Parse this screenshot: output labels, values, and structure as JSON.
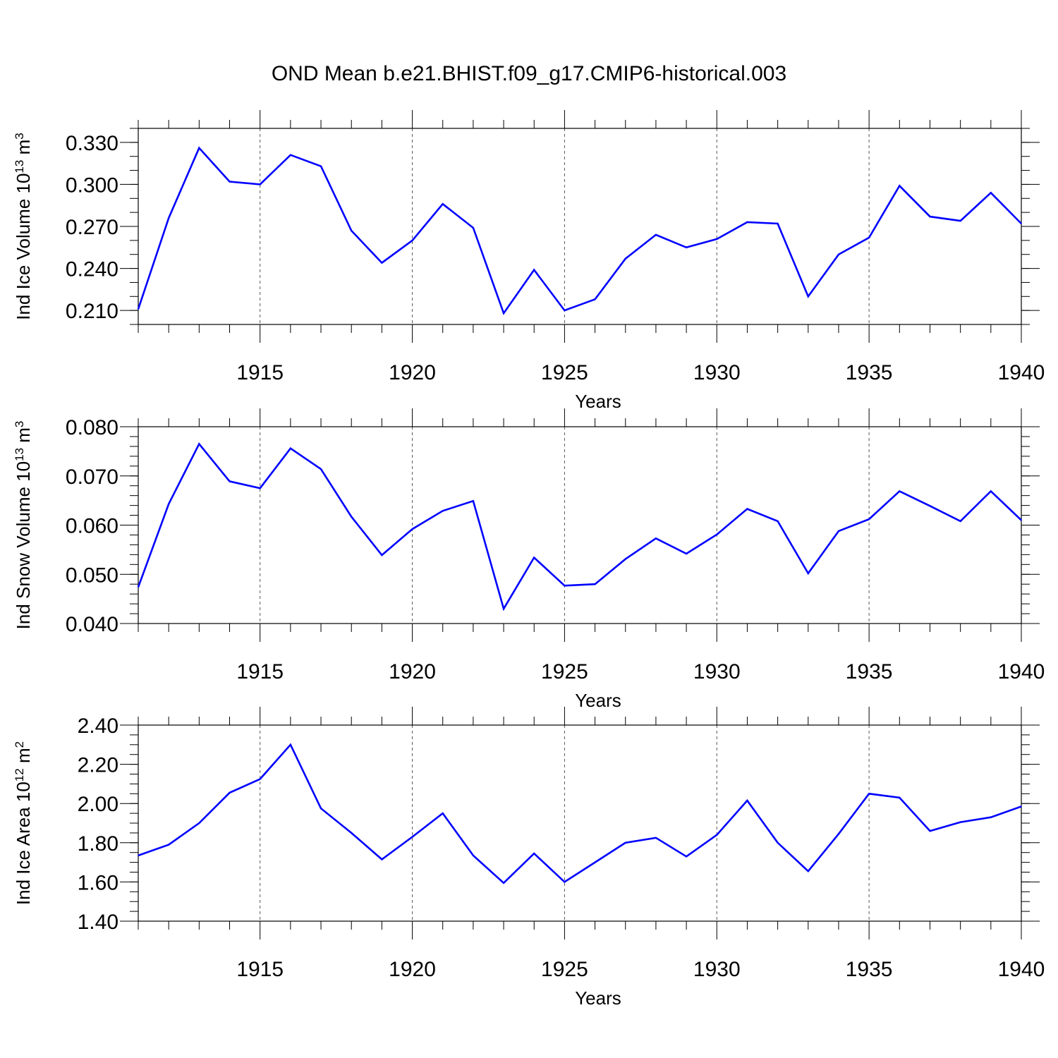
{
  "title": "OND Mean b.e21.BHIST.f09_g17.CMIP6-historical.003",
  "colors": {
    "line": "#0000ff",
    "axis": "#000000",
    "grid": "#555555"
  },
  "chart_data": [
    {
      "type": "line",
      "ylabel": "Ind Ice Volume 10",
      "ylabel_exp": "13",
      "ylabel_unit": " m",
      "ylabel_unit_exp": "3",
      "xlabel": "Years",
      "xlim": [
        1911,
        1940
      ],
      "ylim": [
        0.2,
        0.34
      ],
      "xticks": [
        1915,
        1920,
        1925,
        1930,
        1935,
        1940
      ],
      "yticks": [
        0.21,
        0.24,
        0.27,
        0.3,
        0.33
      ],
      "yticklabels": [
        "0.210",
        "0.240",
        "0.270",
        "0.300",
        "0.330"
      ],
      "yminor": 0.01,
      "grid": "vertical dashed at major x ticks",
      "x": [
        1911,
        1912,
        1913,
        1914,
        1915,
        1916,
        1917,
        1918,
        1919,
        1920,
        1921,
        1922,
        1923,
        1924,
        1925,
        1926,
        1927,
        1928,
        1929,
        1930,
        1931,
        1932,
        1933,
        1934,
        1935,
        1936,
        1937,
        1938,
        1939,
        1940
      ],
      "series": [
        {
          "values": [
            0.211,
            0.276,
            0.326,
            0.302,
            0.3,
            0.321,
            0.313,
            0.267,
            0.244,
            0.26,
            0.286,
            0.269,
            0.208,
            0.239,
            0.21,
            0.218,
            0.247,
            0.264,
            0.255,
            0.261,
            0.273,
            0.272,
            0.22,
            0.25,
            0.262,
            0.299,
            0.277,
            0.274,
            0.294,
            0.272
          ]
        }
      ]
    },
    {
      "type": "line",
      "ylabel": "Ind Snow Volume 10",
      "ylabel_exp": "13",
      "ylabel_unit": " m",
      "ylabel_unit_exp": "3",
      "xlabel": "Years",
      "xlim": [
        1911,
        1940
      ],
      "ylim": [
        0.04,
        0.08
      ],
      "xticks": [
        1915,
        1920,
        1925,
        1930,
        1935,
        1940
      ],
      "yticks": [
        0.04,
        0.05,
        0.06,
        0.07,
        0.08
      ],
      "yticklabels": [
        "0.040",
        "0.050",
        "0.060",
        "0.070",
        "0.080"
      ],
      "yminor": 0.002,
      "grid": "vertical dashed at major x ticks",
      "x": [
        1911,
        1912,
        1913,
        1914,
        1915,
        1916,
        1917,
        1918,
        1919,
        1920,
        1921,
        1922,
        1923,
        1924,
        1925,
        1926,
        1927,
        1928,
        1929,
        1930,
        1931,
        1932,
        1933,
        1934,
        1935,
        1936,
        1937,
        1938,
        1939,
        1940
      ],
      "series": [
        {
          "values": [
            0.0474,
            0.0643,
            0.0765,
            0.0689,
            0.0675,
            0.0756,
            0.0714,
            0.0617,
            0.0539,
            0.0592,
            0.0629,
            0.0649,
            0.043,
            0.0534,
            0.0477,
            0.048,
            0.0531,
            0.0573,
            0.0542,
            0.0581,
            0.0633,
            0.0608,
            0.0502,
            0.0588,
            0.0612,
            0.0669,
            0.0639,
            0.0608,
            0.0669,
            0.061
          ]
        }
      ]
    },
    {
      "type": "line",
      "ylabel": "Ind Ice Area 10",
      "ylabel_exp": "12",
      "ylabel_unit": " m",
      "ylabel_unit_exp": "2",
      "xlabel": "Years",
      "xlim": [
        1911,
        1940
      ],
      "ylim": [
        1.4,
        2.4
      ],
      "xticks": [
        1915,
        1920,
        1925,
        1930,
        1935,
        1940
      ],
      "yticks": [
        1.4,
        1.6,
        1.8,
        2.0,
        2.2,
        2.4
      ],
      "yticklabels": [
        "1.40",
        "1.60",
        "1.80",
        "2.00",
        "2.20",
        "2.40"
      ],
      "yminor": 0.05,
      "grid": "vertical dashed at major x ticks",
      "x": [
        1911,
        1912,
        1913,
        1914,
        1915,
        1916,
        1917,
        1918,
        1919,
        1920,
        1921,
        1922,
        1923,
        1924,
        1925,
        1926,
        1927,
        1928,
        1929,
        1930,
        1931,
        1932,
        1933,
        1934,
        1935,
        1936,
        1937,
        1938,
        1939,
        1940
      ],
      "series": [
        {
          "values": [
            1.735,
            1.79,
            1.9,
            2.055,
            2.125,
            2.3,
            1.975,
            1.85,
            1.715,
            1.83,
            1.95,
            1.735,
            1.595,
            1.745,
            1.6,
            1.7,
            1.8,
            1.825,
            1.73,
            1.84,
            2.015,
            1.8,
            1.655,
            1.845,
            2.05,
            2.03,
            1.86,
            1.905,
            1.93,
            1.985
          ]
        }
      ]
    }
  ]
}
